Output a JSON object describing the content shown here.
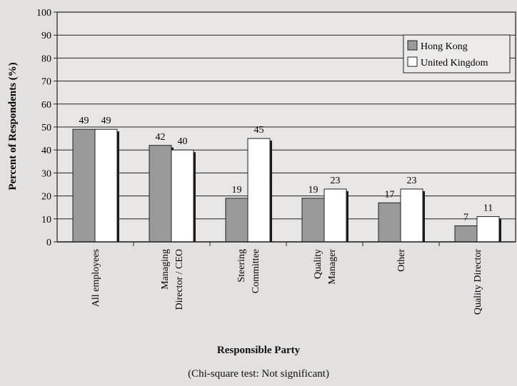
{
  "chart_data": {
    "type": "bar",
    "title": "",
    "xlabel": "Responsible Party",
    "ylabel": "Percent of Respondents (%)",
    "ylim": [
      0,
      100
    ],
    "yticks": [
      0,
      10,
      20,
      30,
      40,
      50,
      60,
      70,
      80,
      90,
      100
    ],
    "grid": true,
    "legend_position": "top-right",
    "categories": [
      [
        "All employees"
      ],
      [
        "Managing",
        "Director / CEO"
      ],
      [
        "Steering",
        "Committee"
      ],
      [
        "Quality",
        "Manager"
      ],
      [
        "Other"
      ],
      [
        "Quality Director"
      ]
    ],
    "series": [
      {
        "name": "Hong Kong",
        "values": [
          49,
          42,
          19,
          19,
          17,
          7
        ],
        "color": "#9a9a9a"
      },
      {
        "name": "United Kingdom",
        "values": [
          49,
          40,
          45,
          23,
          23,
          11
        ],
        "color": "#ffffff"
      }
    ],
    "note": "(Chi-square test: Not significant)"
  }
}
